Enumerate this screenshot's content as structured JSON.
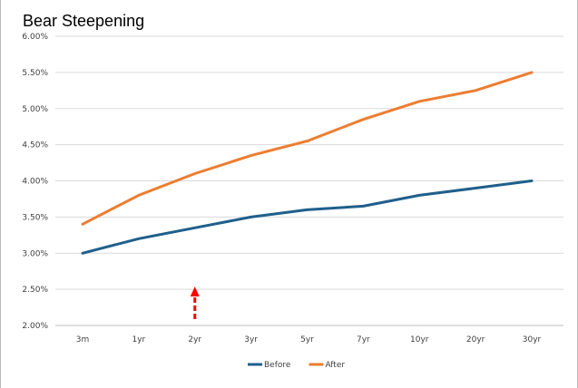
{
  "chart_data": {
    "type": "line",
    "title": "Bear Steepening",
    "xlabel": "",
    "ylabel": "",
    "categories": [
      "3m",
      "1yr",
      "2yr",
      "3yr",
      "5yr",
      "7yr",
      "10yr",
      "20yr",
      "30yr"
    ],
    "ylim": [
      0.02,
      0.06
    ],
    "yticks": [
      "2.00%",
      "2.50%",
      "3.00%",
      "3.50%",
      "4.00%",
      "4.50%",
      "5.00%",
      "5.50%",
      "6.00%"
    ],
    "grid": true,
    "legend_position": "bottom",
    "series": [
      {
        "name": "Before",
        "color": "#1f5f8b",
        "values": [
          0.03,
          0.032,
          0.0335,
          0.035,
          0.036,
          0.0365,
          0.038,
          0.039,
          0.04
        ]
      },
      {
        "name": "After",
        "color": "#ed7d31",
        "values": [
          0.034,
          0.038,
          0.041,
          0.0435,
          0.0455,
          0.0485,
          0.051,
          0.0525,
          0.055
        ]
      }
    ],
    "annotation": {
      "shape": "dashed-up-arrow",
      "category": "2yr",
      "color": "#ff0000"
    }
  }
}
